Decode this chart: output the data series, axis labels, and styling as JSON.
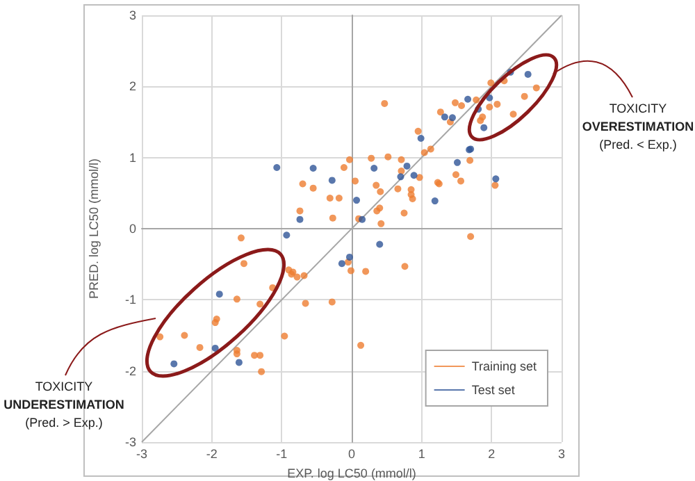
{
  "chart_data": {
    "type": "scatter",
    "xlabel": "EXP. log LC50 (mmol/l)",
    "ylabel": "PRED. log LC50 (mmol/l)",
    "xlim": [
      -3,
      3
    ],
    "ylim": [
      -3,
      3
    ],
    "xticks": [
      -3,
      -2,
      -1,
      0,
      1,
      2,
      3
    ],
    "yticks": [
      -3,
      -2,
      -1,
      0,
      1,
      2,
      3
    ],
    "grid": true,
    "legend": "bottom right",
    "marker": "circle",
    "annotations": [
      "TOXICITY OVERESTIMATION (Pred. < Exp.)",
      "TOXICITY UNDERESTIMATION (Pred. > Exp.)"
    ],
    "series": [
      {
        "name": "Training set",
        "color": "#ed7d31",
        "x": [
          -0.03,
          0.28,
          0.52,
          0.47,
          -0.11,
          -0.7,
          -0.55,
          0.05,
          -0.31,
          -0.18,
          0.35,
          0.41,
          0.4,
          0.36,
          -0.74,
          -0.27,
          0.1,
          0.42,
          2.64,
          2.47,
          2.31,
          2.18,
          1.99,
          2.08,
          1.97,
          1.87,
          1.84,
          1.78,
          1.57,
          1.48,
          1.27,
          1.41,
          0.95,
          1.04,
          1.13,
          0.71,
          0.71,
          1.69,
          1.49,
          1.56,
          1.25,
          1.23,
          0.97,
          0.66,
          0.85,
          0.85,
          0.87,
          2.05,
          0.75,
          -1.58,
          -1.54,
          -0.9,
          -0.84,
          -0.78,
          -0.68,
          -0.86,
          -1.13,
          -1.64,
          -1.31,
          -0.66,
          -0.28,
          -1.93,
          -1.95,
          -2.74,
          -2.39,
          -2.17,
          -1.64,
          -1.64,
          -1.39,
          -1.31,
          -0.96,
          -1.29,
          -0.05,
          -0.01,
          0.2,
          0.13,
          0.76,
          1.7
        ],
        "values": [
          0.97,
          0.99,
          1.01,
          1.76,
          0.86,
          0.63,
          0.57,
          0.67,
          0.43,
          0.43,
          0.61,
          0.52,
          0.29,
          0.25,
          0.25,
          0.15,
          0.14,
          0.07,
          1.98,
          1.86,
          1.61,
          2.08,
          2.05,
          1.75,
          1.71,
          1.57,
          1.52,
          1.81,
          1.73,
          1.77,
          1.64,
          1.5,
          1.37,
          1.07,
          1.12,
          0.97,
          0.81,
          0.96,
          0.76,
          0.67,
          0.63,
          0.65,
          0.72,
          0.56,
          0.55,
          0.48,
          0.42,
          0.61,
          0.22,
          -0.13,
          -0.49,
          -0.58,
          -0.61,
          -0.68,
          -0.66,
          -0.64,
          -0.83,
          -0.99,
          -1.06,
          -1.05,
          -1.03,
          -1.27,
          -1.32,
          -1.52,
          -1.5,
          -1.67,
          -1.71,
          -1.76,
          -1.78,
          -1.78,
          -1.51,
          -2.01,
          -0.47,
          -0.59,
          -0.6,
          -1.64,
          -0.53,
          -0.11
        ]
      },
      {
        "name": "Test set",
        "color": "#2f5597",
        "x": [
          -1.07,
          -0.55,
          -0.28,
          0.32,
          0.07,
          -0.74,
          0.15,
          2.27,
          2.52,
          1.97,
          1.81,
          1.89,
          1.66,
          1.33,
          1.44,
          0.99,
          1.68,
          1.7,
          0.79,
          1.51,
          0.7,
          0.89,
          1.19,
          2.06,
          -0.93,
          -1.89,
          -1.95,
          -1.61,
          -2.54,
          -0.03,
          -0.14,
          0.4
        ],
        "values": [
          0.86,
          0.85,
          0.68,
          0.85,
          0.4,
          0.13,
          0.13,
          2.2,
          2.17,
          1.84,
          1.68,
          1.42,
          1.82,
          1.57,
          1.56,
          1.27,
          1.11,
          1.12,
          0.88,
          0.93,
          0.73,
          0.75,
          0.39,
          0.7,
          -0.09,
          -0.92,
          -1.68,
          -1.88,
          -1.9,
          -0.4,
          -0.49,
          -0.22
        ]
      },
      {
        "type": "line",
        "color": "#a6a6a6",
        "marker": "none",
        "x": [
          -3,
          3
        ],
        "values": [
          -3,
          3
        ]
      }
    ]
  }
}
